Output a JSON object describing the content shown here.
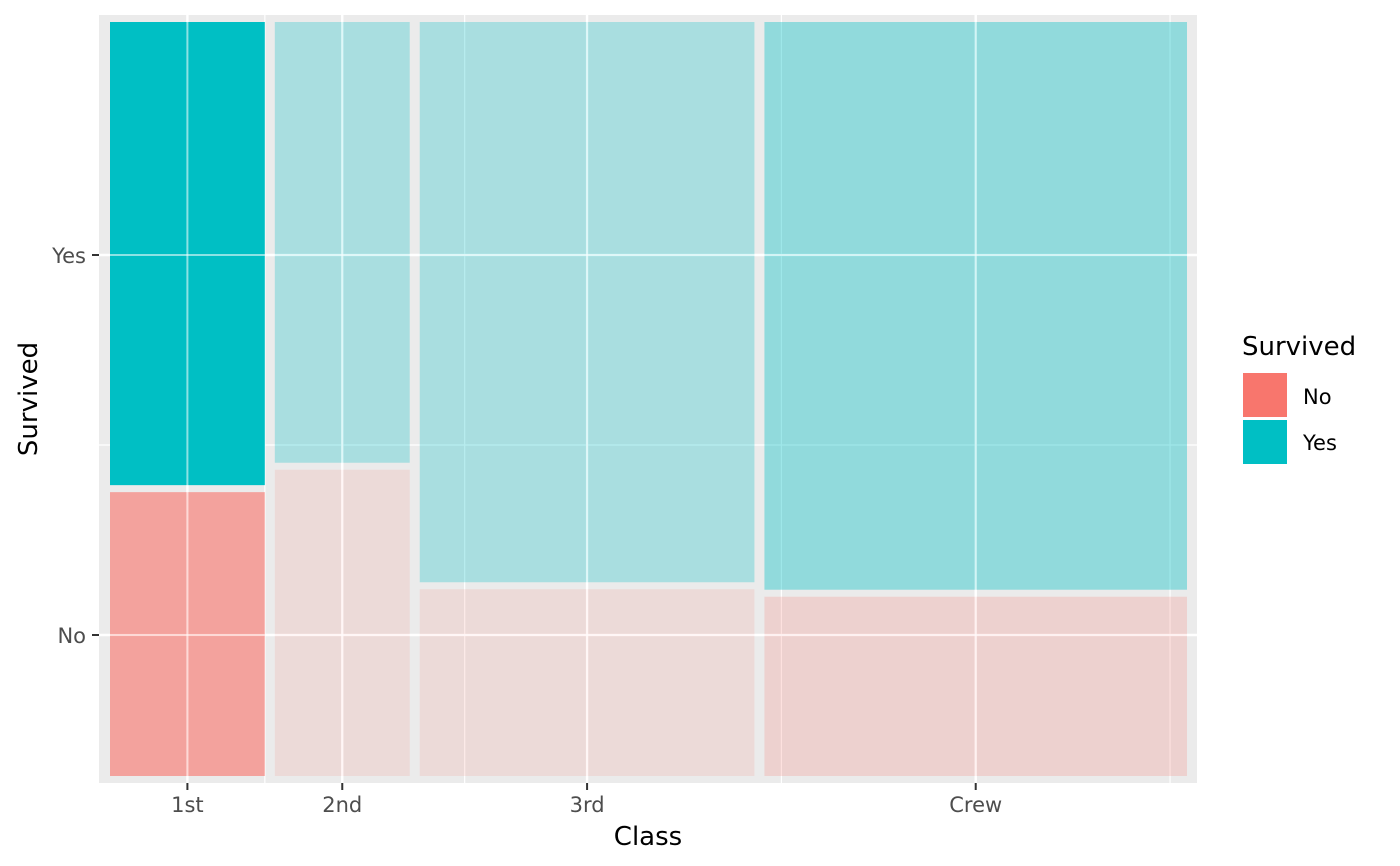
{
  "chart_data": {
    "type": "mosaic",
    "xlabel": "Class",
    "ylabel": "Survived",
    "categories": [
      "1st",
      "2nd",
      "3rd",
      "Crew"
    ],
    "y_levels": [
      "No",
      "Yes"
    ],
    "column_proportions": [
      0.148,
      0.129,
      0.32,
      0.404
    ],
    "survived_yes_fraction": [
      0.62,
      0.59,
      0.75,
      0.76
    ],
    "x_tick_labels": [
      "1st",
      "2nd",
      "3rd",
      "Crew"
    ],
    "y_tick_labels": [
      "No",
      "Yes"
    ],
    "legend": {
      "title": "Survived",
      "placement": "right",
      "items": [
        {
          "label": "No",
          "color": "#F8766D"
        },
        {
          "label": "Yes",
          "color": "#00BFC4"
        }
      ]
    },
    "highlighted_category": "1st",
    "colors": {
      "No": "#F8766D",
      "Yes": "#00BFC4",
      "panel_background": "#EBEBEB",
      "grid": "#FFFFFF"
    },
    "grid": true
  }
}
